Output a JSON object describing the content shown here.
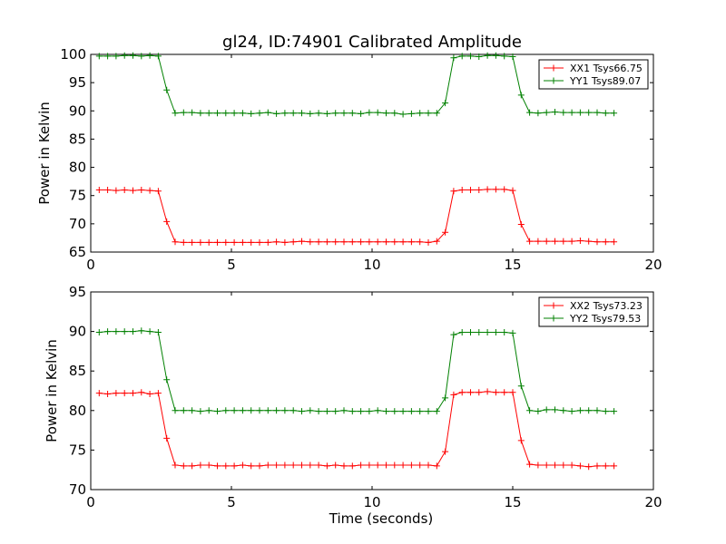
{
  "chart_data": [
    {
      "type": "line",
      "title": "gl24, ID:74901 Calibrated Amplitude",
      "xlabel": "",
      "ylabel": "Power in Kelvin",
      "xlim": [
        0,
        20
      ],
      "ylim": [
        65,
        100
      ],
      "xticks": [
        0,
        5,
        10,
        15,
        20
      ],
      "yticks": [
        65,
        70,
        75,
        80,
        85,
        90,
        95,
        100
      ],
      "grid": false,
      "legend_position": "top-right",
      "x": [
        0.3,
        0.6,
        0.9,
        1.2,
        1.5,
        1.8,
        2.1,
        2.4,
        2.7,
        3.0,
        3.3,
        3.6,
        3.9,
        4.2,
        4.5,
        4.8,
        5.1,
        5.4,
        5.7,
        6.0,
        6.3,
        6.6,
        6.9,
        7.2,
        7.5,
        7.8,
        8.1,
        8.4,
        8.7,
        9.0,
        9.3,
        9.6,
        9.9,
        10.2,
        10.5,
        10.8,
        11.1,
        11.4,
        11.7,
        12.0,
        12.3,
        12.6,
        12.9,
        13.2,
        13.5,
        13.8,
        14.1,
        14.4,
        14.7,
        15.0,
        15.3,
        15.6,
        15.9,
        16.2,
        16.5,
        16.8,
        17.1,
        17.4,
        17.7,
        18.0,
        18.3,
        18.6
      ],
      "series": [
        {
          "name": "XX1 Tsys66.75",
          "color": "#ff0000",
          "values": [
            76.0,
            76.0,
            75.9,
            76.0,
            75.9,
            76.0,
            75.9,
            75.8,
            70.4,
            66.8,
            66.7,
            66.7,
            66.7,
            66.7,
            66.7,
            66.7,
            66.7,
            66.7,
            66.7,
            66.7,
            66.7,
            66.8,
            66.7,
            66.8,
            66.9,
            66.8,
            66.8,
            66.8,
            66.8,
            66.8,
            66.8,
            66.8,
            66.8,
            66.8,
            66.8,
            66.8,
            66.8,
            66.8,
            66.8,
            66.7,
            66.9,
            68.5,
            75.8,
            76.0,
            76.0,
            76.0,
            76.1,
            76.1,
            76.1,
            75.9,
            69.9,
            66.9,
            66.9,
            66.9,
            66.9,
            66.9,
            66.9,
            67.0,
            66.9,
            66.8,
            66.8,
            66.8
          ]
        },
        {
          "name": "YY1 Tsys89.07",
          "color": "#008000",
          "values": [
            99.7,
            99.7,
            99.7,
            99.8,
            99.8,
            99.7,
            99.8,
            99.7,
            93.7,
            89.6,
            89.7,
            89.7,
            89.6,
            89.6,
            89.6,
            89.6,
            89.6,
            89.6,
            89.5,
            89.6,
            89.7,
            89.5,
            89.6,
            89.6,
            89.6,
            89.5,
            89.6,
            89.5,
            89.6,
            89.6,
            89.6,
            89.5,
            89.7,
            89.7,
            89.6,
            89.6,
            89.4,
            89.5,
            89.6,
            89.6,
            89.6,
            91.4,
            99.4,
            99.7,
            99.7,
            99.6,
            99.8,
            99.8,
            99.7,
            99.6,
            92.8,
            89.7,
            89.6,
            89.7,
            89.8,
            89.7,
            89.7,
            89.7,
            89.7,
            89.7,
            89.6,
            89.6
          ]
        }
      ]
    },
    {
      "type": "line",
      "title": "",
      "xlabel": "Time (seconds)",
      "ylabel": "Power in Kelvin",
      "xlim": [
        0,
        20
      ],
      "ylim": [
        70,
        95
      ],
      "xticks": [
        0,
        5,
        10,
        15,
        20
      ],
      "yticks": [
        70,
        75,
        80,
        85,
        90,
        95
      ],
      "grid": false,
      "legend_position": "top-right",
      "x": [
        0.3,
        0.6,
        0.9,
        1.2,
        1.5,
        1.8,
        2.1,
        2.4,
        2.7,
        3.0,
        3.3,
        3.6,
        3.9,
        4.2,
        4.5,
        4.8,
        5.1,
        5.4,
        5.7,
        6.0,
        6.3,
        6.6,
        6.9,
        7.2,
        7.5,
        7.8,
        8.1,
        8.4,
        8.7,
        9.0,
        9.3,
        9.6,
        9.9,
        10.2,
        10.5,
        10.8,
        11.1,
        11.4,
        11.7,
        12.0,
        12.3,
        12.6,
        12.9,
        13.2,
        13.5,
        13.8,
        14.1,
        14.4,
        14.7,
        15.0,
        15.3,
        15.6,
        15.9,
        16.2,
        16.5,
        16.8,
        17.1,
        17.4,
        17.7,
        18.0,
        18.3,
        18.6
      ],
      "series": [
        {
          "name": "XX2 Tsys73.23",
          "color": "#ff0000",
          "values": [
            82.2,
            82.1,
            82.2,
            82.2,
            82.2,
            82.3,
            82.1,
            82.2,
            76.5,
            73.1,
            73.0,
            73.0,
            73.1,
            73.1,
            73.0,
            73.0,
            73.0,
            73.1,
            73.0,
            73.0,
            73.1,
            73.1,
            73.1,
            73.1,
            73.1,
            73.1,
            73.1,
            73.0,
            73.1,
            73.0,
            73.0,
            73.1,
            73.1,
            73.1,
            73.1,
            73.1,
            73.1,
            73.1,
            73.1,
            73.1,
            73.0,
            74.8,
            82.0,
            82.3,
            82.3,
            82.3,
            82.4,
            82.3,
            82.3,
            82.3,
            76.2,
            73.2,
            73.1,
            73.1,
            73.1,
            73.1,
            73.1,
            73.0,
            72.9,
            73.0,
            73.0,
            73.0
          ]
        },
        {
          "name": "YY2 Tsys79.53",
          "color": "#008000",
          "values": [
            89.9,
            90.0,
            90.0,
            90.0,
            90.0,
            90.1,
            90.0,
            89.9,
            83.9,
            80.0,
            80.0,
            80.0,
            79.9,
            80.0,
            79.9,
            80.0,
            80.0,
            80.0,
            80.0,
            80.0,
            80.0,
            80.0,
            80.0,
            80.0,
            79.9,
            80.0,
            79.9,
            79.9,
            79.9,
            80.0,
            79.9,
            79.9,
            79.9,
            80.0,
            79.9,
            79.9,
            79.9,
            79.9,
            79.9,
            79.9,
            79.9,
            81.6,
            89.6,
            89.9,
            89.9,
            89.9,
            89.9,
            89.9,
            89.9,
            89.8,
            83.1,
            80.0,
            79.9,
            80.1,
            80.1,
            80.0,
            79.9,
            80.0,
            80.0,
            80.0,
            79.9,
            79.9
          ]
        }
      ]
    }
  ]
}
